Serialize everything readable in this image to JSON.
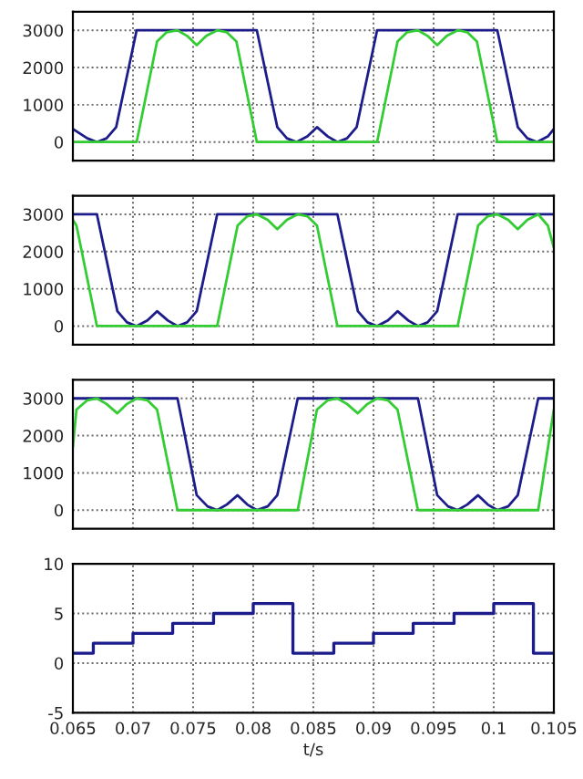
{
  "chart_data": [
    {
      "type": "line",
      "xlim": [
        0.065,
        0.105
      ],
      "xticks": [
        0.065,
        0.07,
        0.075,
        0.08,
        0.085,
        0.09,
        0.095,
        0.1,
        0.105
      ],
      "ylim": [
        -500,
        3500
      ],
      "yticks": [
        0,
        1000,
        2000,
        3000
      ],
      "grid": true,
      "tick_labels": "y",
      "series": [
        {
          "color": "#1c1c8a",
          "x": [
            0.065,
            0.0662,
            0.067,
            0.0678,
            0.0686,
            0.0703,
            0.0803,
            0.082,
            0.0828,
            0.0836,
            0.0845,
            0.0853,
            0.0862,
            0.087,
            0.0878,
            0.0886,
            0.0903,
            0.1003,
            0.102,
            0.1028,
            0.1036,
            0.1045,
            0.105
          ],
          "values": [
            350,
            100,
            0,
            100,
            400,
            3000,
            3000,
            400,
            100,
            0,
            150,
            400,
            150,
            0,
            100,
            400,
            3000,
            3000,
            400,
            100,
            0,
            150,
            350
          ]
        },
        {
          "color": "#33cc33",
          "x": [
            0.065,
            0.0703,
            0.072,
            0.0728,
            0.0737,
            0.0745,
            0.0753,
            0.0761,
            0.077,
            0.0778,
            0.0786,
            0.0803,
            0.0903,
            0.092,
            0.0928,
            0.0937,
            0.0945,
            0.0953,
            0.0961,
            0.097,
            0.0978,
            0.0986,
            0.1003,
            0.105
          ],
          "values": [
            0,
            0,
            2700,
            2950,
            3000,
            2850,
            2600,
            2850,
            3000,
            2950,
            2700,
            0,
            0,
            2700,
            2950,
            3000,
            2850,
            2600,
            2850,
            3000,
            2950,
            2700,
            0,
            0
          ]
        }
      ]
    },
    {
      "type": "line",
      "xlim": [
        0.065,
        0.105
      ],
      "xticks": [
        0.065,
        0.07,
        0.075,
        0.08,
        0.085,
        0.09,
        0.095,
        0.1,
        0.105
      ],
      "ylim": [
        -500,
        3500
      ],
      "yticks": [
        0,
        1000,
        2000,
        3000
      ],
      "grid": true,
      "tick_labels": "y",
      "series": [
        {
          "color": "#1c1c8a",
          "x": [
            0.065,
            0.067,
            0.0687,
            0.0695,
            0.0703,
            0.0712,
            0.072,
            0.0729,
            0.0737,
            0.0745,
            0.0753,
            0.077,
            0.087,
            0.0887,
            0.0895,
            0.0903,
            0.0912,
            0.092,
            0.0929,
            0.0937,
            0.0945,
            0.0953,
            0.097,
            0.105
          ],
          "values": [
            3000,
            3000,
            400,
            100,
            0,
            150,
            400,
            150,
            0,
            100,
            400,
            3000,
            3000,
            400,
            100,
            0,
            150,
            400,
            150,
            0,
            100,
            400,
            3000,
            3000
          ]
        },
        {
          "color": "#33cc33",
          "x": [
            0.065,
            0.0653,
            0.067,
            0.077,
            0.0787,
            0.0795,
            0.0803,
            0.0812,
            0.082,
            0.0828,
            0.0837,
            0.0845,
            0.0853,
            0.087,
            0.097,
            0.0987,
            0.0995,
            0.1003,
            0.1012,
            0.102,
            0.1028,
            0.1037,
            0.1045,
            0.105
          ],
          "values": [
            2850,
            2700,
            0,
            0,
            2700,
            2950,
            3000,
            2850,
            2600,
            2850,
            3000,
            2950,
            2700,
            0,
            0,
            2700,
            2950,
            3000,
            2850,
            2600,
            2850,
            3000,
            2700,
            2100
          ]
        }
      ]
    },
    {
      "type": "line",
      "xlim": [
        0.065,
        0.105
      ],
      "xticks": [
        0.065,
        0.07,
        0.075,
        0.08,
        0.085,
        0.09,
        0.095,
        0.1,
        0.105
      ],
      "ylim": [
        -500,
        3500
      ],
      "yticks": [
        0,
        1000,
        2000,
        3000
      ],
      "grid": true,
      "tick_labels": "y",
      "series": [
        {
          "color": "#1c1c8a",
          "x": [
            0.065,
            0.0737,
            0.0753,
            0.0762,
            0.077,
            0.0778,
            0.0787,
            0.0795,
            0.0803,
            0.0812,
            0.082,
            0.0837,
            0.0937,
            0.0953,
            0.0962,
            0.097,
            0.0978,
            0.0987,
            0.0995,
            0.1003,
            0.1012,
            0.102,
            0.1037,
            0.105
          ],
          "values": [
            3000,
            3000,
            400,
            100,
            0,
            150,
            400,
            150,
            0,
            100,
            400,
            3000,
            3000,
            400,
            100,
            0,
            150,
            400,
            150,
            0,
            100,
            400,
            3000,
            3000
          ]
        },
        {
          "color": "#33cc33",
          "x": [
            0.065,
            0.0653,
            0.0662,
            0.067,
            0.0678,
            0.0687,
            0.0695,
            0.0703,
            0.0712,
            0.072,
            0.0737,
            0.0837,
            0.0853,
            0.0862,
            0.087,
            0.0878,
            0.0887,
            0.0895,
            0.0903,
            0.0912,
            0.092,
            0.0937,
            0.1037,
            0.105
          ],
          "values": [
            1700,
            2700,
            2950,
            3000,
            2850,
            2600,
            2850,
            3000,
            2950,
            2700,
            0,
            0,
            2700,
            2950,
            3000,
            2850,
            2600,
            2850,
            3000,
            2950,
            2700,
            0,
            0,
            2700
          ]
        }
      ]
    },
    {
      "type": "step",
      "xlim": [
        0.065,
        0.105
      ],
      "xticks": [
        0.065,
        0.07,
        0.075,
        0.08,
        0.085,
        0.09,
        0.095,
        0.1,
        0.105
      ],
      "ylim": [
        -5,
        10
      ],
      "yticks": [
        -5,
        0,
        5,
        10
      ],
      "grid": true,
      "xlabel": "t/s",
      "series": [
        {
          "color": "#1c1c8a",
          "x": [
            0.065,
            0.0667,
            0.07,
            0.0733,
            0.0767,
            0.08,
            0.0833,
            0.0867,
            0.09,
            0.0933,
            0.0967,
            0.1,
            0.1033,
            0.105
          ],
          "values": [
            1,
            2,
            3,
            4,
            5,
            6,
            1,
            2,
            3,
            4,
            5,
            6,
            1,
            1
          ]
        }
      ]
    }
  ]
}
